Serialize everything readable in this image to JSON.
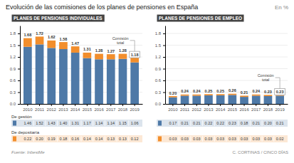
{
  "title": "Evolución de las comisiones de los planes de pensiones en España",
  "subtitle": "En %",
  "annotations": [
    "Fuente: InbestMe",
    "C. CORTINAS / CINCO DÍAS"
  ],
  "chart_data": [
    {
      "type": "bar",
      "stacked": true,
      "grid": true,
      "title": "PLANES DE PENSIONES INDIVIDUALES",
      "categories": [
        "2010",
        "2011",
        "2012",
        "2013",
        "2014",
        "2015",
        "2016",
        "2017",
        "2018",
        "2019"
      ],
      "series": [
        {
          "name": "De gestión",
          "values": [
            1.46,
            1.52,
            1.43,
            1.4,
            1.31,
            1.17,
            1.14,
            1.14,
            1.15,
            1.06
          ],
          "value_labels": [
            "1.46",
            "1.52",
            "1.43",
            "1.40",
            "1.31",
            "1.17",
            "1.14",
            "1.14",
            "1.15",
            "1.06"
          ]
        },
        {
          "name": "De depositaría",
          "values": [
            0.22,
            0.2,
            0.19,
            0.18,
            0.16,
            0.14,
            0.14,
            0.13,
            0.13,
            0.12
          ],
          "value_labels": [
            "0.22",
            "0.20",
            "0.19",
            "0.18",
            "0.16",
            "0.14",
            "0.14",
            "0.13",
            "0.13",
            "0.12"
          ]
        }
      ],
      "totals": [
        1.68,
        1.72,
        1.62,
        1.58,
        1.47,
        1.31,
        1.28,
        1.27,
        1.28,
        1.18
      ],
      "total_labels": [
        "1.68",
        "1.72",
        "1.62",
        "1.58",
        "1.47",
        "1.31",
        "1.28",
        "1.27",
        "1.28",
        "1.18"
      ],
      "annotations": [
        "Comisión\ntotal"
      ],
      "ylim": [
        0,
        2.0
      ],
      "yticks": [
        {
          "value": 0,
          "label": "0.0"
        },
        0.3,
        0.6,
        0.9,
        1.2,
        1.5,
        1.8
      ]
    },
    {
      "type": "bar",
      "stacked": true,
      "grid": true,
      "title": "PLANES DE PENSIONES DE EMPLEO",
      "categories": [
        "2010",
        "2011",
        "2012",
        "2013",
        "2014",
        "2015",
        "2016",
        "2017",
        "2018",
        "2019"
      ],
      "series": [
        {
          "values": [
            0.17,
            0.21,
            0.21,
            0.22,
            0.22,
            0.23,
            0.18,
            0.21,
            0.2,
            0.21
          ],
          "value_labels": [
            "0.17",
            "0.21",
            "0.21",
            "0.22",
            "0.22",
            "0.23",
            "0.18",
            "0.21",
            "0.20",
            "0.21"
          ]
        },
        {
          "values": [
            0.03,
            0.03,
            0.03,
            0.03,
            0.03,
            0.03,
            0.03,
            0.03,
            0.03,
            0.02
          ],
          "value_labels": [
            "0.03",
            "0.03",
            "0.03",
            "0.03",
            "0.03",
            "0.03",
            "0.03",
            "0.03",
            "0.03",
            "0.02"
          ]
        }
      ],
      "totals": [
        0.2,
        0.24,
        0.24,
        0.25,
        0.25,
        0.26,
        0.21,
        0.24,
        0.23,
        0.23
      ],
      "total_labels": [
        "0.20",
        "0.24",
        "0.24",
        "0.25",
        "0.25",
        "0.26",
        "0.21",
        "0.24",
        "0.23",
        "0.23"
      ],
      "annotations": [
        "Comisión\ntotal"
      ],
      "ylim": [
        0,
        2.0
      ],
      "yticks": [
        {
          "value": 0,
          "label": "0.0"
        },
        0.3,
        0.6,
        0.9,
        1.2,
        1.5,
        1.8
      ]
    }
  ]
}
